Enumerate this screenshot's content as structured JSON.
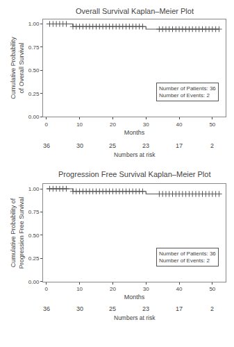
{
  "chart_data": [
    {
      "type": "line",
      "title": "Overall Survival Kaplan–Meier Plot",
      "x_label": "Months",
      "y_label": "Cumulative Probability of Overall Survival",
      "xlim": [
        -1,
        54
      ],
      "ylim": [
        0.0,
        1.05
      ],
      "xticks": [
        0,
        10,
        20,
        30,
        40,
        50
      ],
      "yticks": [
        {
          "value": 0.0,
          "label": "0.00"
        },
        0.25,
        {
          "value": 0.5,
          "label": "0.50"
        },
        0.75,
        {
          "value": 1.0,
          "label": "1.00"
        }
      ],
      "grid": false,
      "series": [
        {
          "type": "step",
          "color": "#555555",
          "x": [
            0,
            1,
            1,
            7,
            7,
            8,
            8,
            9,
            9,
            10,
            10,
            11,
            11,
            12,
            12,
            13,
            13,
            14,
            14,
            15,
            15,
            16,
            16,
            17,
            17,
            18,
            18,
            19,
            19,
            20,
            20,
            21,
            21,
            22,
            22,
            23,
            23,
            24,
            24,
            25,
            25,
            26,
            26,
            27,
            27,
            28,
            28,
            29,
            29,
            30,
            30,
            33,
            33,
            34,
            34,
            35,
            35,
            36,
            36,
            37,
            37,
            38,
            38,
            39,
            39,
            40,
            40,
            41,
            41,
            42,
            42,
            43,
            43,
            44,
            44,
            45,
            45,
            46,
            46,
            47,
            47,
            48,
            48,
            49,
            49,
            50,
            50,
            52
          ],
          "values": [
            1.0,
            1.0,
            1.0,
            1.0,
            1.0,
            0.972,
            0.972,
            0.972,
            0.972,
            0.972,
            0.972,
            0.972,
            0.972,
            0.972,
            0.972,
            0.972,
            0.972,
            0.972,
            0.972,
            0.972,
            0.972,
            0.972,
            0.972,
            0.972,
            0.972,
            0.972,
            0.972,
            0.972,
            0.972,
            0.972,
            0.972,
            0.972,
            0.972,
            0.972,
            0.972,
            0.972,
            0.972,
            0.972,
            0.972,
            0.972,
            0.972,
            0.972,
            0.972,
            0.972,
            0.972,
            0.972,
            0.972,
            0.972,
            0.972,
            0.972,
            0.944,
            0.944,
            0.944,
            0.944,
            0.944,
            0.944,
            0.944,
            0.944,
            0.944,
            0.944,
            0.944,
            0.944,
            0.944,
            0.944,
            0.944,
            0.944,
            0.944,
            0.944,
            0.944,
            0.944,
            0.944,
            0.944,
            0.944,
            0.944,
            0.944,
            0.944,
            0.944,
            0.944,
            0.944,
            0.944,
            0.944,
            0.944,
            0.944,
            0.944,
            0.944,
            0.944,
            0.944,
            0.944
          ]
        },
        {
          "type": "scatter",
          "marker": "cross",
          "color": "#555555",
          "x": [
            1,
            2,
            3,
            4,
            5,
            6,
            8,
            9,
            10,
            11,
            12,
            13,
            14,
            15,
            16,
            17,
            18,
            19,
            20,
            21,
            22,
            23,
            24,
            25,
            26,
            27,
            28,
            29,
            34,
            35,
            36,
            37,
            38,
            39,
            40,
            41,
            42,
            43,
            44,
            45,
            46,
            47,
            48,
            49,
            50,
            51,
            52
          ],
          "values": [
            1.0,
            1.0,
            1.0,
            1.0,
            1.0,
            1.0,
            0.972,
            0.972,
            0.972,
            0.972,
            0.972,
            0.972,
            0.972,
            0.972,
            0.972,
            0.972,
            0.972,
            0.972,
            0.972,
            0.972,
            0.972,
            0.972,
            0.972,
            0.972,
            0.972,
            0.972,
            0.972,
            0.972,
            0.944,
            0.944,
            0.944,
            0.944,
            0.944,
            0.944,
            0.944,
            0.944,
            0.944,
            0.944,
            0.944,
            0.944,
            0.944,
            0.944,
            0.944,
            0.944,
            0.944,
            0.944,
            0.944
          ]
        }
      ],
      "annotations": [
        "Number of Patients: 36\nNumber of Events: 2"
      ],
      "numbers_at_risk": {
        "label": "Numbers at risk",
        "times": [
          0,
          10,
          20,
          30,
          40,
          50
        ],
        "values": [
          36,
          30,
          25,
          23,
          17,
          2
        ]
      }
    },
    {
      "type": "line",
      "title": "Progression Free Survival Kaplan–Meier Plot",
      "x_label": "Months",
      "y_label": "Cumulative Probability of Progression Free Survival",
      "xlim": [
        -1,
        54
      ],
      "ylim": [
        0.0,
        1.05
      ],
      "xticks": [
        0,
        10,
        20,
        30,
        40,
        50
      ],
      "yticks": [
        {
          "value": 0.0,
          "label": "0.00"
        },
        0.25,
        {
          "value": 0.5,
          "label": "0.50"
        },
        0.75,
        {
          "value": 1.0,
          "label": "1.00"
        }
      ],
      "grid": false,
      "series": [
        {
          "type": "step",
          "color": "#555555",
          "x": [
            0,
            1,
            1,
            7,
            7,
            8,
            8,
            9,
            9,
            10,
            10,
            11,
            11,
            12,
            12,
            13,
            13,
            14,
            14,
            15,
            15,
            16,
            16,
            17,
            17,
            18,
            18,
            19,
            19,
            20,
            20,
            21,
            21,
            22,
            22,
            23,
            23,
            24,
            24,
            25,
            25,
            26,
            26,
            27,
            27,
            28,
            28,
            29,
            29,
            30,
            30,
            33,
            33,
            34,
            34,
            35,
            35,
            36,
            36,
            37,
            37,
            38,
            38,
            39,
            39,
            40,
            40,
            41,
            41,
            42,
            42,
            43,
            43,
            44,
            44,
            45,
            45,
            46,
            46,
            47,
            47,
            48,
            48,
            49,
            49,
            50,
            50,
            52
          ],
          "values": [
            1.0,
            1.0,
            1.0,
            1.0,
            1.0,
            0.972,
            0.972,
            0.972,
            0.972,
            0.972,
            0.972,
            0.972,
            0.972,
            0.972,
            0.972,
            0.972,
            0.972,
            0.972,
            0.972,
            0.972,
            0.972,
            0.972,
            0.972,
            0.972,
            0.972,
            0.972,
            0.972,
            0.972,
            0.972,
            0.972,
            0.972,
            0.972,
            0.972,
            0.972,
            0.972,
            0.972,
            0.972,
            0.972,
            0.972,
            0.972,
            0.972,
            0.972,
            0.972,
            0.972,
            0.972,
            0.972,
            0.972,
            0.972,
            0.972,
            0.972,
            0.944,
            0.944,
            0.944,
            0.944,
            0.944,
            0.944,
            0.944,
            0.944,
            0.944,
            0.944,
            0.944,
            0.944,
            0.944,
            0.944,
            0.944,
            0.944,
            0.944,
            0.944,
            0.944,
            0.944,
            0.944,
            0.944,
            0.944,
            0.944,
            0.944,
            0.944,
            0.944,
            0.944,
            0.944,
            0.944,
            0.944,
            0.944,
            0.944,
            0.944,
            0.944,
            0.944,
            0.944,
            0.944
          ]
        },
        {
          "type": "scatter",
          "marker": "cross",
          "color": "#555555",
          "x": [
            1,
            2,
            3,
            4,
            5,
            6,
            8,
            9,
            10,
            11,
            12,
            13,
            14,
            15,
            16,
            17,
            18,
            19,
            20,
            21,
            22,
            23,
            24,
            25,
            26,
            27,
            28,
            29,
            34,
            35,
            36,
            37,
            38,
            39,
            40,
            41,
            42,
            43,
            44,
            45,
            46,
            47,
            48,
            49,
            50,
            51,
            52
          ],
          "values": [
            1.0,
            1.0,
            1.0,
            1.0,
            1.0,
            1.0,
            0.972,
            0.972,
            0.972,
            0.972,
            0.972,
            0.972,
            0.972,
            0.972,
            0.972,
            0.972,
            0.972,
            0.972,
            0.972,
            0.972,
            0.972,
            0.972,
            0.972,
            0.972,
            0.972,
            0.972,
            0.972,
            0.972,
            0.944,
            0.944,
            0.944,
            0.944,
            0.944,
            0.944,
            0.944,
            0.944,
            0.944,
            0.944,
            0.944,
            0.944,
            0.944,
            0.944,
            0.944,
            0.944,
            0.944,
            0.944,
            0.944
          ]
        }
      ],
      "annotations": [
        "Number of Patients: 36\nNumber of Events: 2"
      ],
      "numbers_at_risk": {
        "label": "Numbers at risk",
        "times": [
          0,
          10,
          20,
          30,
          40,
          50
        ],
        "values": [
          36,
          30,
          25,
          23,
          17,
          2
        ]
      }
    }
  ]
}
